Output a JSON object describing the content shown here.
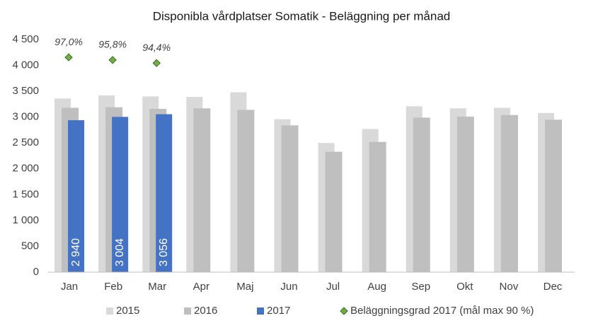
{
  "chart_data": {
    "type": "bar",
    "title": "Disponibla vårdplatser Somatik - Beläggning per månad",
    "categories": [
      "Jan",
      "Feb",
      "Mar",
      "Apr",
      "Maj",
      "Jun",
      "Jul",
      "Aug",
      "Sep",
      "Okt",
      "Nov",
      "Dec"
    ],
    "series": [
      {
        "name": "2015",
        "color": "#d9d9d9",
        "values": [
          3360,
          3420,
          3400,
          3390,
          3480,
          2960,
          2500,
          2770,
          3210,
          3170,
          3180,
          3080
        ]
      },
      {
        "name": "2016",
        "color": "#bfbfbf",
        "values": [
          3180,
          3190,
          3160,
          3170,
          3140,
          2840,
          2330,
          2520,
          2990,
          3010,
          3040,
          2950
        ]
      },
      {
        "name": "2017",
        "color": "#4472c4",
        "values": [
          2940,
          3004,
          3056,
          null,
          null,
          null,
          null,
          null,
          null,
          null,
          null,
          null
        ],
        "value_labels": [
          "2 940",
          "3 004",
          "3 056",
          null,
          null,
          null,
          null,
          null,
          null,
          null,
          null,
          null
        ]
      },
      {
        "name": "Beläggningsgrad 2017 (mål max 90 %)",
        "color": "#70ad47",
        "axis": "y2",
        "marker": "diamond",
        "values": [
          97.0,
          95.8,
          94.4,
          null,
          null,
          null,
          null,
          null,
          null,
          null,
          null,
          null
        ],
        "value_labels": [
          "97,0%",
          "95,8%",
          "94,4%",
          null,
          null,
          null,
          null,
          null,
          null,
          null,
          null,
          null
        ]
      }
    ],
    "ylim": [
      0,
      4500
    ],
    "yticks": [
      0,
      500,
      {
        "value": 1000,
        "label": "1 000"
      },
      {
        "value": 1500,
        "label": "1 500"
      },
      {
        "value": 2000,
        "label": "2 000"
      },
      {
        "value": 2500,
        "label": "2 500"
      },
      {
        "value": 3000,
        "label": "3 000"
      },
      {
        "value": 3500,
        "label": "3 500"
      },
      {
        "value": 4000,
        "label": "4 000"
      },
      {
        "value": 4500,
        "label": "4 500"
      }
    ],
    "y2lim": [
      0,
      105
    ],
    "grid": false,
    "legend": "bottom"
  }
}
